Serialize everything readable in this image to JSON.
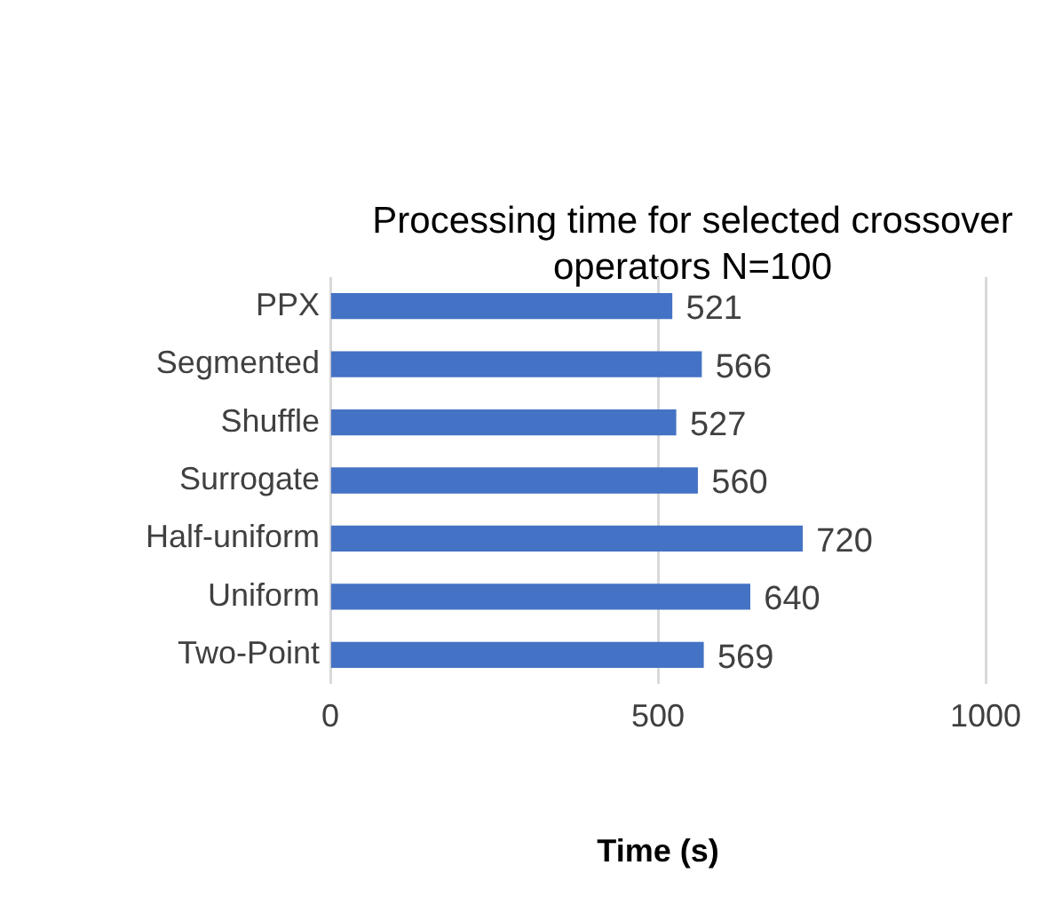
{
  "chart_data": {
    "type": "bar",
    "orientation": "horizontal",
    "title": "Processing time for selected crossover operators N=100",
    "xlabel": "Time (s)",
    "categories": [
      "PPX",
      "Segmented",
      "Shuffle",
      "Surrogate",
      "Half-uniform",
      "Uniform",
      "Two-Point"
    ],
    "values": [
      521,
      566,
      527,
      560,
      720,
      640,
      569
    ],
    "color": "#4472c4",
    "xlim": [
      0,
      1000
    ],
    "xticks": [
      0,
      500,
      1000
    ],
    "grid": "x",
    "data_labels": true,
    "legend": false
  }
}
